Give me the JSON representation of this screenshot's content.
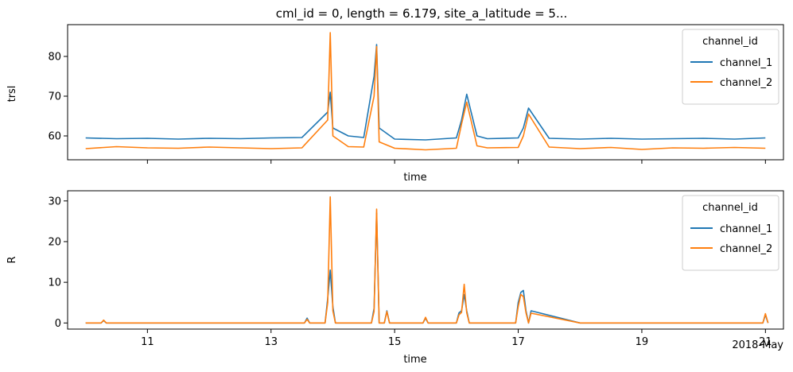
{
  "title": "cml_id = 0, length = 6.179, site_a_latitude = 5...",
  "colors": {
    "channel_1": "#1f77b4",
    "channel_2": "#ff7f0e"
  },
  "x_tick_labels": [
    "11",
    "13",
    "15",
    "17",
    "19",
    "21"
  ],
  "x_offset_label": "2018-May",
  "chart_data": [
    {
      "type": "line",
      "title": "cml_id = 0, length = 6.179, site_a_latitude = 5...",
      "xlabel": "time",
      "ylabel": "trsl",
      "xlim": [
        "2018-05-09T17:00",
        "2018-05-21T07:00"
      ],
      "ylim": [
        54,
        88
      ],
      "yticks": [
        60,
        70,
        80
      ],
      "grid": false,
      "legend": {
        "title": "channel_id",
        "placement": "top-right"
      },
      "x": [
        "2018-05-10T00:00",
        "2018-05-10T12:00",
        "2018-05-11T00:00",
        "2018-05-11T12:00",
        "2018-05-12T00:00",
        "2018-05-12T12:00",
        "2018-05-13T00:00",
        "2018-05-13T12:00",
        "2018-05-13T22:00",
        "2018-05-13T23:00",
        "2018-05-14T00:00",
        "2018-05-14T06:00",
        "2018-05-14T12:00",
        "2018-05-14T16:00",
        "2018-05-14T17:00",
        "2018-05-14T18:00",
        "2018-05-15T00:00",
        "2018-05-15T12:00",
        "2018-05-16T00:00",
        "2018-05-16T02:00",
        "2018-05-16T04:00",
        "2018-05-16T08:00",
        "2018-05-16T12:00",
        "2018-05-17T00:00",
        "2018-05-17T02:00",
        "2018-05-17T04:00",
        "2018-05-17T12:00",
        "2018-05-18T00:00",
        "2018-05-18T12:00",
        "2018-05-19T00:00",
        "2018-05-19T12:00",
        "2018-05-20T00:00",
        "2018-05-20T12:00",
        "2018-05-21T00:00"
      ],
      "series": [
        {
          "name": "channel_1",
          "values": [
            59.5,
            59.3,
            59.4,
            59.2,
            59.4,
            59.3,
            59.5,
            59.6,
            66,
            71,
            62,
            60,
            59.6,
            75,
            83,
            62,
            59.2,
            59.0,
            59.5,
            64,
            70.5,
            60,
            59.3,
            59.5,
            62,
            67,
            59.4,
            59.2,
            59.4,
            59.2,
            59.3,
            59.4,
            59.2,
            59.5
          ]
        },
        {
          "name": "channel_2",
          "values": [
            56.8,
            57.3,
            57.0,
            56.9,
            57.2,
            57.0,
            56.8,
            57.0,
            64,
            86,
            60,
            57.3,
            57.2,
            70,
            82.5,
            58.5,
            56.9,
            56.5,
            56.9,
            63,
            68.5,
            57.5,
            57.0,
            57.1,
            60,
            65.5,
            57.2,
            56.8,
            57.1,
            56.6,
            57.0,
            56.9,
            57.1,
            56.9
          ]
        }
      ]
    },
    {
      "type": "line",
      "xlabel": "time",
      "ylabel": "R",
      "xlim": [
        "2018-05-09T17:00",
        "2018-05-21T07:00"
      ],
      "ylim": [
        -1.5,
        32.5
      ],
      "yticks": [
        0,
        10,
        20,
        30
      ],
      "grid": false,
      "legend": {
        "title": "channel_id",
        "placement": "top-right"
      },
      "x": [
        "2018-05-10T00:00",
        "2018-05-10T06:00",
        "2018-05-10T07:00",
        "2018-05-10T08:00",
        "2018-05-11T00:00",
        "2018-05-12T00:00",
        "2018-05-13T00:00",
        "2018-05-13T13:00",
        "2018-05-13T14:00",
        "2018-05-13T15:00",
        "2018-05-13T21:00",
        "2018-05-13T22:00",
        "2018-05-13T23:00",
        "2018-05-14T00:00",
        "2018-05-14T01:00",
        "2018-05-14T15:00",
        "2018-05-14T16:00",
        "2018-05-14T17:00",
        "2018-05-14T18:00",
        "2018-05-14T20:00",
        "2018-05-14T21:00",
        "2018-05-14T22:00",
        "2018-05-15T11:00",
        "2018-05-15T12:00",
        "2018-05-15T13:00",
        "2018-05-16T00:00",
        "2018-05-16T01:00",
        "2018-05-16T02:00",
        "2018-05-16T03:00",
        "2018-05-16T04:00",
        "2018-05-16T05:00",
        "2018-05-16T06:00",
        "2018-05-16T07:00",
        "2018-05-16T23:00",
        "2018-05-17T00:00",
        "2018-05-17T01:00",
        "2018-05-17T02:00",
        "2018-05-17T03:00",
        "2018-05-17T04:00",
        "2018-05-17T05:00",
        "2018-05-18T00:00",
        "2018-05-19T00:00",
        "2018-05-20T00:00",
        "2018-05-20T23:00",
        "2018-05-21T00:00",
        "2018-05-21T01:00"
      ],
      "series": [
        {
          "name": "channel_1",
          "values": [
            0,
            0,
            0.6,
            0,
            0,
            0,
            0,
            0,
            1.2,
            0,
            0,
            6,
            13,
            4,
            0,
            0,
            3.6,
            27,
            0,
            0,
            3,
            0,
            0,
            1.2,
            0,
            0,
            2.5,
            3,
            7,
            3,
            0,
            0,
            0,
            0,
            5,
            7.5,
            8,
            3,
            0,
            3,
            0,
            0,
            0,
            0,
            2,
            0
          ]
        },
        {
          "name": "channel_2",
          "values": [
            0,
            0,
            0.7,
            0,
            0,
            0,
            0,
            0,
            0.9,
            0,
            0,
            5,
            31,
            3,
            0,
            0,
            2.8,
            28,
            0,
            0,
            2.8,
            0,
            0,
            1.4,
            0,
            0,
            2,
            2.6,
            9.5,
            2.5,
            0,
            0,
            0,
            0,
            4,
            7,
            6.5,
            2.5,
            0,
            2.4,
            0,
            0,
            0,
            0,
            2.3,
            0
          ]
        }
      ]
    }
  ]
}
